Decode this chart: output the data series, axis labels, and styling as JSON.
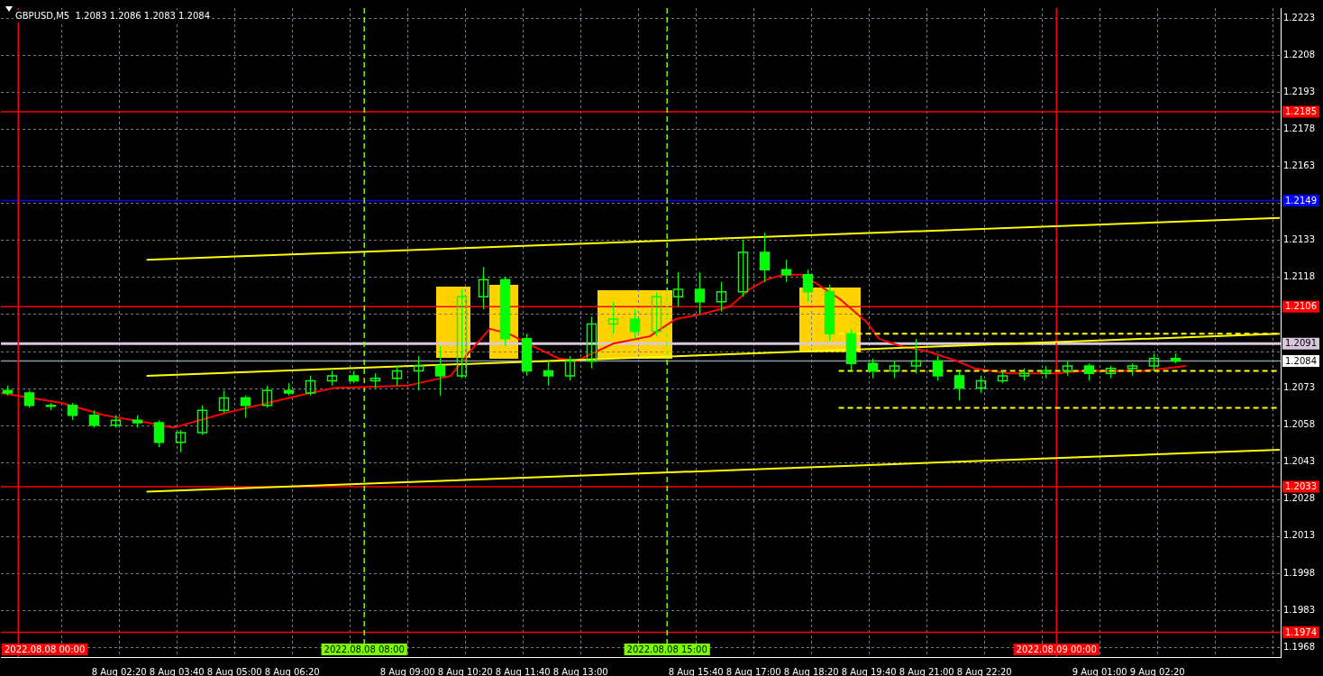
{
  "chart_data": {
    "type": "candlestick",
    "title": "GBPUSD,M5  1.2083 1.2086 1.2083 1.2084",
    "xlim": [
      "2022-08-07T23:36",
      "2022-08-09T05:11"
    ],
    "xticks": [
      {
        "value": "2022-08-08T01:00",
        "label": null
      },
      {
        "value": "2022-08-08T02:20",
        "label": "8 Aug 02:20"
      },
      {
        "value": "2022-08-08T03:40",
        "label": "8 Aug 03:40"
      },
      {
        "value": "2022-08-08T05:00",
        "label": "8 Aug 05:00"
      },
      {
        "value": "2022-08-08T06:20",
        "label": "8 Aug 06:20"
      },
      {
        "value": "2022-08-08T07:40",
        "label": null
      },
      {
        "value": "2022-08-08T09:00",
        "label": "8 Aug 09:00"
      },
      {
        "value": "2022-08-08T10:20",
        "label": "8 Aug 10:20"
      },
      {
        "value": "2022-08-08T11:40",
        "label": "8 Aug 11:40"
      },
      {
        "value": "2022-08-08T13:00",
        "label": "8 Aug 13:00"
      },
      {
        "value": "2022-08-08T14:20",
        "label": null
      },
      {
        "value": "2022-08-08T15:40",
        "label": "8 Aug 15:40"
      },
      {
        "value": "2022-08-08T17:00",
        "label": "8 Aug 17:00"
      },
      {
        "value": "2022-08-08T18:20",
        "label": "8 Aug 18:20"
      },
      {
        "value": "2022-08-08T19:40",
        "label": "8 Aug 19:40"
      },
      {
        "value": "2022-08-08T21:00",
        "label": "8 Aug 21:00"
      },
      {
        "value": "2022-08-08T22:20",
        "label": "8 Aug 22:20"
      },
      {
        "value": "2022-08-08T23:40",
        "label": null
      },
      {
        "value": "2022-08-09T01:00",
        "label": "9 Aug 01:00"
      },
      {
        "value": "2022-08-09T02:20",
        "label": "9 Aug 02:20"
      },
      {
        "value": "2022-08-09T03:40",
        "label": null
      },
      {
        "value": "2022-08-09T05:00",
        "label": null
      }
    ],
    "ylim": [
      1.1964,
      1.2227
    ],
    "yticks": [
      1.1968,
      1.1983,
      1.1998,
      1.2013,
      1.2028,
      1.2043,
      1.2058,
      1.2073,
      {
        "value": 1.2088,
        "label": null
      },
      {
        "value": 1.2103,
        "label": null
      },
      1.2118,
      1.2133,
      {
        "value": 1.2148,
        "label": null
      },
      1.2163,
      1.2178,
      1.2193,
      1.2208,
      1.2223
    ],
    "grid": true,
    "series": [
      {
        "type": "line",
        "color": "#ffff00",
        "x": [
          "2022-08-08T02:58",
          "2022-08-09T05:10"
        ],
        "values": [
          1.2125,
          1.2142
        ]
      },
      {
        "type": "line",
        "color": "#ffff00",
        "x": [
          "2022-08-08T02:58",
          "2022-08-09T05:10"
        ],
        "values": [
          1.2078,
          1.2095
        ]
      },
      {
        "type": "line",
        "color": "#ffff00",
        "x": [
          "2022-08-08T02:58",
          "2022-08-09T05:10"
        ],
        "values": [
          1.2031,
          1.2048
        ]
      },
      {
        "type": "line",
        "color": "#ffff00",
        "line_style": "dashed",
        "x": [
          "2022-08-08T18:58",
          "2022-08-09T05:10"
        ],
        "values": [
          1.2095,
          1.2095
        ]
      },
      {
        "type": "line",
        "color": "#ffff00",
        "line_style": "dashed",
        "x": [
          "2022-08-08T18:58",
          "2022-08-09T05:10"
        ],
        "values": [
          1.208,
          1.208
        ]
      },
      {
        "type": "line",
        "color": "#ffff00",
        "line_style": "dashed",
        "x": [
          "2022-08-08T18:58",
          "2022-08-09T05:10"
        ],
        "values": [
          1.2065,
          1.2065
        ]
      },
      {
        "type": "line",
        "color": "#ff0000",
        "x": [
          "2022-08-07T23:36",
          "2022-08-08T01:00",
          "2022-08-08T02:00",
          "2022-08-08T03:00",
          "2022-08-08T03:36",
          "2022-08-08T04:48",
          "2022-08-08T06:30",
          "2022-08-08T07:18",
          "2022-08-08T09:00",
          "2022-08-08T10:00",
          "2022-08-08T10:24",
          "2022-08-08T10:54",
          "2022-08-08T11:21",
          "2022-08-08T11:54",
          "2022-08-08T12:30",
          "2022-08-08T12:54",
          "2022-08-08T13:45",
          "2022-08-08T14:36",
          "2022-08-08T15:12",
          "2022-08-08T15:48",
          "2022-08-08T16:27",
          "2022-08-08T16:54",
          "2022-08-08T17:18",
          "2022-08-08T17:42",
          "2022-08-08T18:06",
          "2022-08-08T18:24",
          "2022-08-08T19:00",
          "2022-08-08T19:36",
          "2022-08-08T19:54",
          "2022-08-08T20:24",
          "2022-08-08T21:00",
          "2022-08-08T21:42",
          "2022-08-08T22:06",
          "2022-08-08T22:54",
          "2022-08-09T00:00",
          "2022-08-09T00:36",
          "2022-08-09T01:24",
          "2022-08-09T02:00",
          "2022-08-09T02:30",
          "2022-08-09T03:00"
        ],
        "values": [
          1.2071,
          1.2067,
          1.2062,
          1.2059,
          1.2057,
          1.2063,
          1.207,
          1.2073,
          1.2074,
          1.2078,
          1.2087,
          1.2097,
          1.2095,
          1.209,
          1.2085,
          1.2084,
          1.2091,
          1.2094,
          1.2101,
          1.2103,
          1.2106,
          1.2113,
          1.2117,
          1.2119,
          1.2119,
          1.2116,
          1.2109,
          1.21,
          1.2093,
          1.209,
          1.2088,
          1.2084,
          1.2081,
          1.2079,
          1.2079,
          1.208,
          1.208,
          1.208,
          1.2081,
          1.2082
        ]
      },
      {
        "color": "#00ff00",
        "x": [
          "2022-08-07T23:45",
          "2022-08-08T00:15",
          "2022-08-08T00:45",
          "2022-08-08T01:15",
          "2022-08-08T01:45",
          "2022-08-08T02:15",
          "2022-08-08T02:45",
          "2022-08-08T03:15",
          "2022-08-08T03:45",
          "2022-08-08T04:15",
          "2022-08-08T04:45",
          "2022-08-08T05:15",
          "2022-08-08T05:45",
          "2022-08-08T06:15",
          "2022-08-08T06:45",
          "2022-08-08T07:15",
          "2022-08-08T07:45",
          "2022-08-08T08:15",
          "2022-08-08T08:45",
          "2022-08-08T09:15",
          "2022-08-08T09:45",
          "2022-08-08T10:15",
          "2022-08-08T10:45",
          "2022-08-08T11:15",
          "2022-08-08T11:45",
          "2022-08-08T12:15",
          "2022-08-08T12:45",
          "2022-08-08T13:15",
          "2022-08-08T13:45",
          "2022-08-08T14:15",
          "2022-08-08T14:45",
          "2022-08-08T15:15",
          "2022-08-08T15:45",
          "2022-08-08T16:15",
          "2022-08-08T16:45",
          "2022-08-08T17:15",
          "2022-08-08T17:45",
          "2022-08-08T18:15",
          "2022-08-08T18:45",
          "2022-08-08T19:15",
          "2022-08-08T19:45",
          "2022-08-08T20:15",
          "2022-08-08T20:45",
          "2022-08-08T21:15",
          "2022-08-08T21:45",
          "2022-08-08T22:15",
          "2022-08-08T22:45",
          "2022-08-08T23:15",
          "2022-08-08T23:45",
          "2022-08-09T00:15",
          "2022-08-09T00:45",
          "2022-08-09T01:15",
          "2022-08-09T01:45",
          "2022-08-09T02:15",
          "2022-08-09T02:45"
        ],
        "ohlc": [
          [
            1.2072,
            1.2074,
            1.207,
            1.2071
          ],
          [
            1.2071,
            1.2072,
            1.2065,
            1.2066
          ],
          [
            1.2066,
            1.2067,
            1.2064,
            1.2066
          ],
          [
            1.2066,
            1.2067,
            1.206,
            1.2062
          ],
          [
            1.2062,
            1.2064,
            1.2057,
            1.2058
          ],
          [
            1.2058,
            1.2062,
            1.2057,
            1.206
          ],
          [
            1.206,
            1.2062,
            1.2057,
            1.2059
          ],
          [
            1.2059,
            1.206,
            1.2049,
            1.2051
          ],
          [
            1.2051,
            1.2056,
            1.2047,
            1.2055
          ],
          [
            1.2055,
            1.2066,
            1.2054,
            1.2064
          ],
          [
            1.2064,
            1.2072,
            1.2063,
            1.2069
          ],
          [
            1.2069,
            1.207,
            1.2061,
            1.2066
          ],
          [
            1.2066,
            1.2074,
            1.2065,
            1.2072
          ],
          [
            1.2072,
            1.2075,
            1.207,
            1.2071
          ],
          [
            1.2071,
            1.2078,
            1.207,
            1.2076
          ],
          [
            1.2076,
            1.208,
            1.2074,
            1.2078
          ],
          [
            1.2078,
            1.208,
            1.2075,
            1.2076
          ],
          [
            1.2076,
            1.2079,
            1.2073,
            1.2077
          ],
          [
            1.2077,
            1.2082,
            1.2074,
            1.208
          ],
          [
            1.208,
            1.2086,
            1.2072,
            1.2082
          ],
          [
            1.2082,
            1.209,
            1.207,
            1.2078
          ],
          [
            1.2078,
            1.2113,
            1.2077,
            1.211
          ],
          [
            1.211,
            1.2122,
            1.2105,
            1.2117
          ],
          [
            1.2117,
            1.2118,
            1.209,
            1.2093
          ],
          [
            1.2093,
            1.2095,
            1.2078,
            1.208
          ],
          [
            1.208,
            1.2084,
            1.2074,
            1.2078
          ],
          [
            1.2078,
            1.2086,
            1.2076,
            1.2084
          ],
          [
            1.2084,
            1.2102,
            1.2081,
            1.2099
          ],
          [
            1.2099,
            1.2108,
            1.2095,
            1.2101
          ],
          [
            1.2101,
            1.2105,
            1.2093,
            1.2096
          ],
          [
            1.2096,
            1.2112,
            1.2094,
            1.211
          ],
          [
            1.211,
            1.212,
            1.2106,
            1.2113
          ],
          [
            1.2113,
            1.212,
            1.2103,
            1.2108
          ],
          [
            1.2108,
            1.2116,
            1.2104,
            1.2112
          ],
          [
            1.2112,
            1.2133,
            1.211,
            1.2128
          ],
          [
            1.2128,
            1.2136,
            1.2116,
            1.2121
          ],
          [
            1.2121,
            1.2125,
            1.2116,
            1.2119
          ],
          [
            1.2119,
            1.2121,
            1.2108,
            1.2112
          ],
          [
            1.2112,
            1.2115,
            1.2092,
            1.2095
          ],
          [
            1.2095,
            1.2097,
            1.208,
            1.2083
          ],
          [
            1.2083,
            1.2085,
            1.2077,
            1.208
          ],
          [
            1.208,
            1.2084,
            1.2077,
            1.2082
          ],
          [
            1.2082,
            1.2093,
            1.2079,
            1.2084
          ],
          [
            1.2084,
            1.2086,
            1.2076,
            1.2078
          ],
          [
            1.2078,
            1.208,
            1.2068,
            1.2073
          ],
          [
            1.2073,
            1.2078,
            1.2071,
            1.2076
          ],
          [
            1.2076,
            1.208,
            1.2075,
            1.2078
          ],
          [
            1.2078,
            1.2081,
            1.2076,
            1.2079
          ],
          [
            1.2079,
            1.2082,
            1.2077,
            1.208
          ],
          [
            1.208,
            1.2084,
            1.2078,
            1.2082
          ],
          [
            1.2082,
            1.2083,
            1.2076,
            1.2079
          ],
          [
            1.2079,
            1.2082,
            1.2077,
            1.2081
          ],
          [
            1.2081,
            1.2083,
            1.2078,
            1.2082
          ],
          [
            1.2082,
            1.2087,
            1.208,
            1.2085
          ],
          [
            1.2085,
            1.2087,
            1.2083,
            1.2084
          ]
        ]
      }
    ],
    "ref_lines": [
      {
        "axis": "y",
        "value": 1.2185,
        "label": "1.2185",
        "color": "#ff0000"
      },
      {
        "axis": "y",
        "value": 1.2149,
        "label": "1.2149",
        "color": "#0000ff"
      },
      {
        "axis": "y",
        "value": 1.2106,
        "label": "1.2106",
        "color": "#ff0000"
      },
      {
        "axis": "y",
        "value": 1.2091,
        "label": "1.2091",
        "color": "#d8c8dc"
      },
      {
        "axis": "y",
        "value": 1.2084,
        "label": "1.2084",
        "color": "#8c9aa8"
      },
      {
        "axis": "y",
        "value": 1.2033,
        "label": "1.2033",
        "color": "#ff0000"
      },
      {
        "axis": "y",
        "value": 1.1974,
        "label": "1.1974",
        "color": "#ff0000"
      },
      {
        "axis": "x",
        "value": "2022-08-08T00:00",
        "label": "2022.08.08 00:00",
        "color": "#ff0000"
      },
      {
        "axis": "x",
        "value": "2022-08-08T08:00",
        "label": "2022.08.08 08:00",
        "color": "#7cfc00",
        "line_style": "dashed"
      },
      {
        "axis": "x",
        "value": "2022-08-08T15:00",
        "label": "2022.08.08 15:00",
        "color": "#7cfc00",
        "line_style": "dashed"
      },
      {
        "axis": "x",
        "value": "2022-08-09T00:00",
        "label": "2022.08.09 00:00",
        "color": "#ff0000"
      }
    ]
  }
}
